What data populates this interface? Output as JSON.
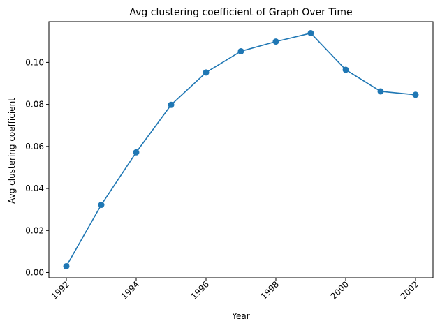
{
  "chart_data": {
    "type": "line",
    "title": "Avg clustering coefficient of Graph Over Time",
    "xlabel": "Year",
    "ylabel": "Avg clustering coefficient",
    "x": [
      1992,
      1993,
      1994,
      1995,
      1996,
      1997,
      1998,
      1999,
      2000,
      2001,
      2002
    ],
    "series": [
      {
        "values": [
          0.003,
          0.0322,
          0.0572,
          0.0798,
          0.0952,
          0.1053,
          0.1099,
          0.1139,
          0.0965,
          0.0862,
          0.0846
        ]
      }
    ],
    "xlim": [
      1991.5,
      2002.5
    ],
    "ylim": [
      -0.0025,
      0.1194
    ],
    "xticks": [
      1992,
      1994,
      1996,
      1998,
      2000,
      2002
    ],
    "xtick_labels": [
      "1992",
      "1994",
      "1996",
      "1998",
      "2000",
      "2002"
    ],
    "yticks": [
      0.0,
      0.02,
      0.04,
      0.06,
      0.08,
      0.1
    ],
    "ytick_labels": [
      "0.00",
      "0.02",
      "0.04",
      "0.06",
      "0.08",
      "0.10"
    ],
    "xtick_rotation_deg": 45,
    "marker": "circle",
    "grid": false,
    "legend": false,
    "colors": {
      "line": "#1f77b4",
      "axis": "#000000",
      "background": "#ffffff"
    }
  }
}
